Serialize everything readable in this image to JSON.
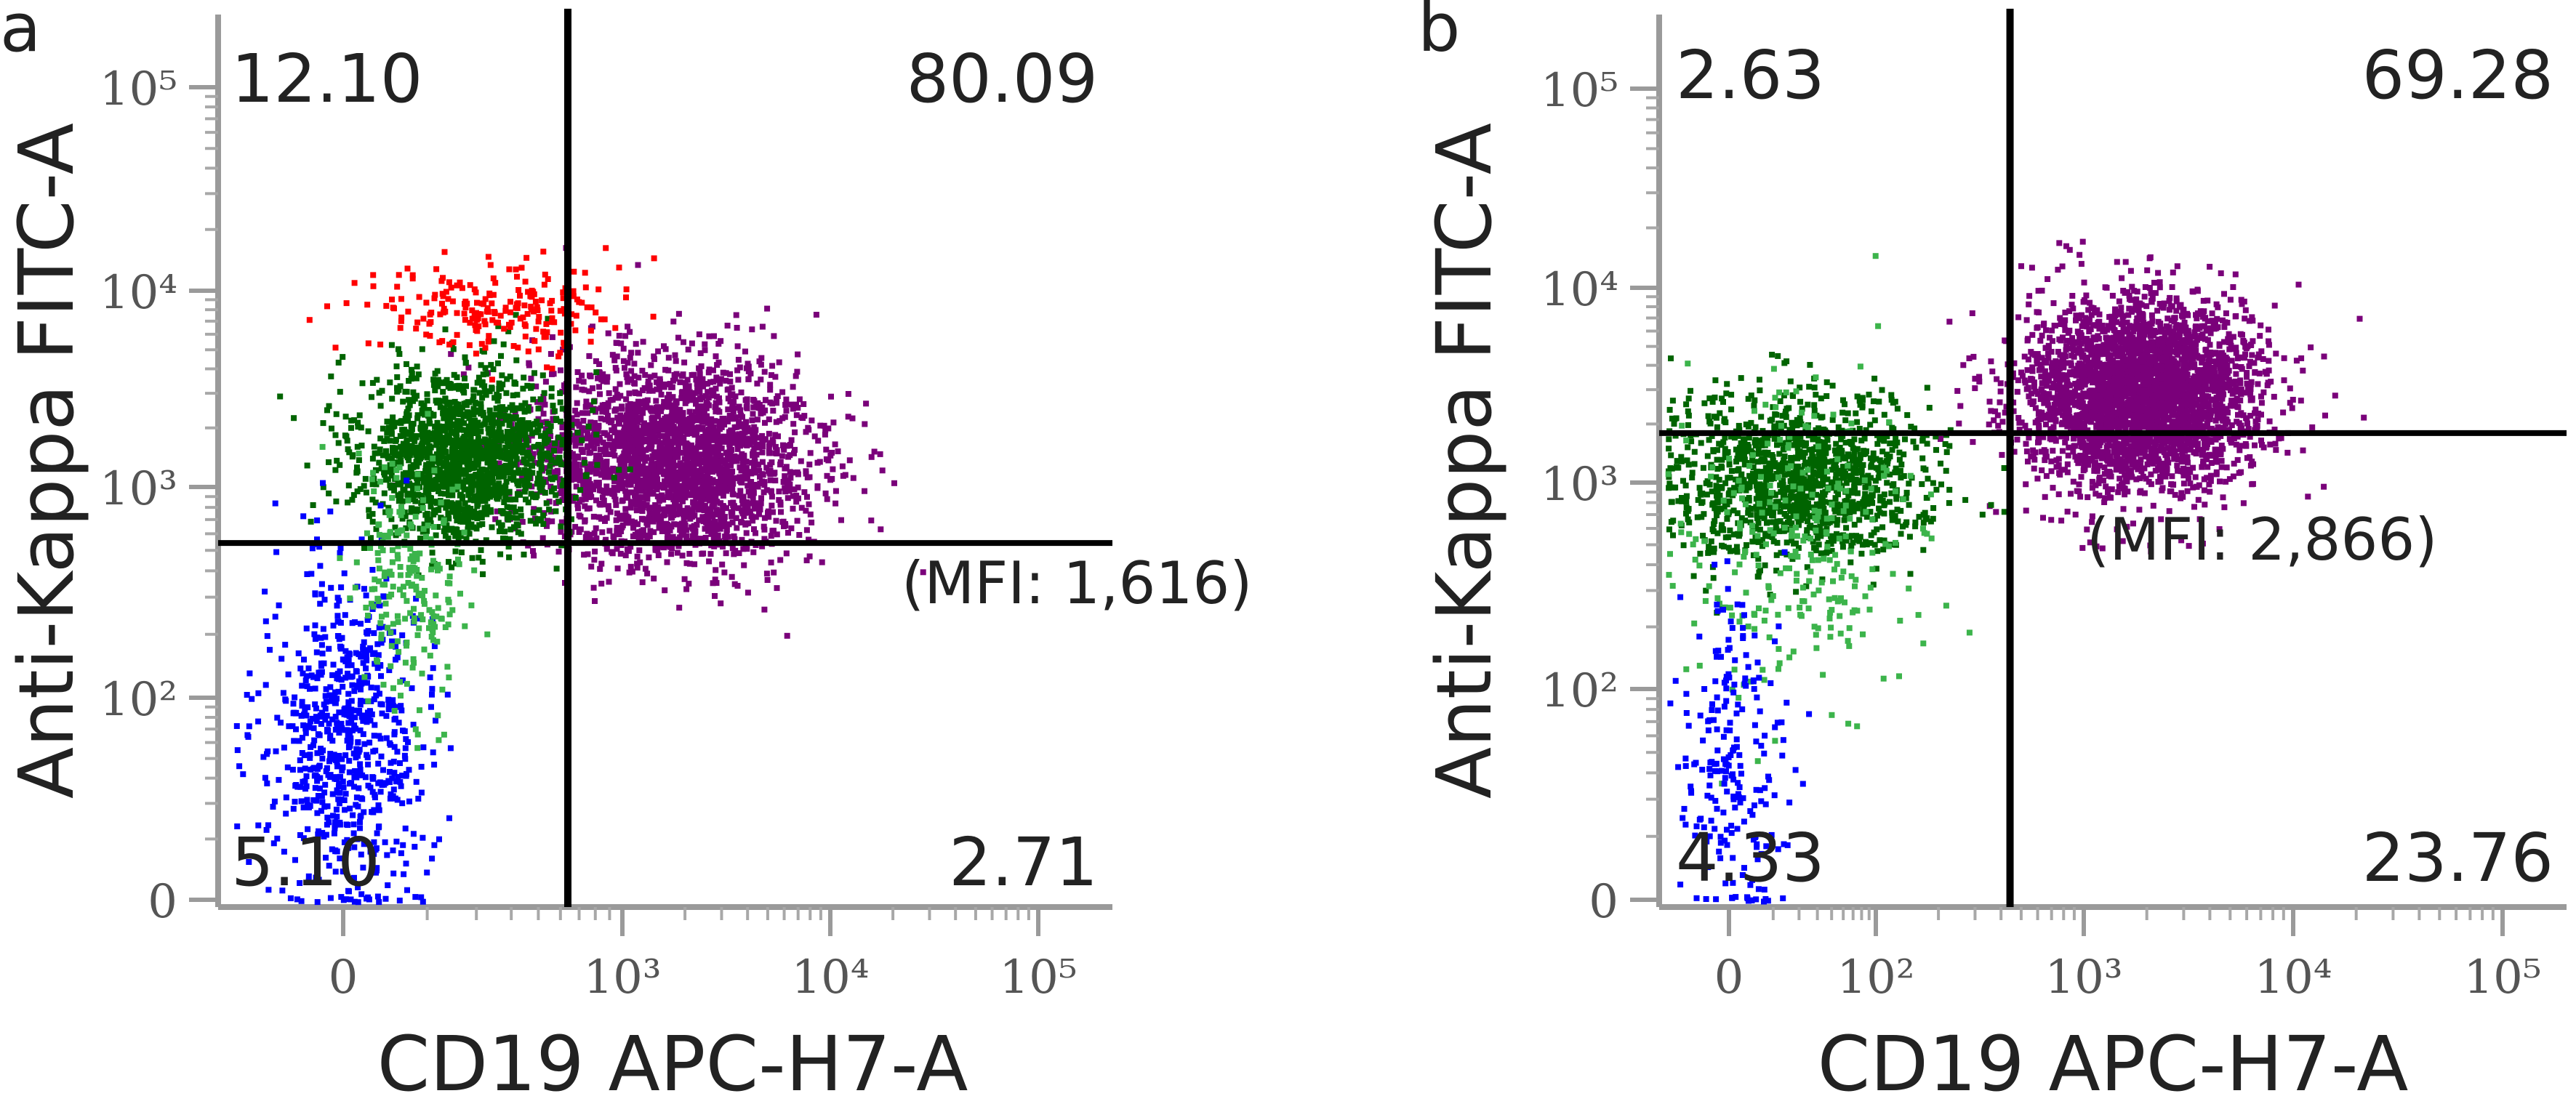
{
  "chart_data": [
    {
      "panel_label": "a",
      "type": "scatter",
      "xlabel": "CD19 APC-H7-A",
      "ylabel": "Anti-Kappa FITC-A",
      "x_ticks": [
        "0",
        "10³",
        "10⁴",
        "10⁵"
      ],
      "y_ticks": [
        "0",
        "10²",
        "10³",
        "10⁴",
        "10⁵"
      ],
      "x_scale": "biexponential",
      "y_scale": "biexponential",
      "xlim": [
        -300,
        250000
      ],
      "ylim": [
        0,
        250000
      ],
      "gate": {
        "x": 400,
        "y": 550
      },
      "quadrants": {
        "upper_left": "12.10",
        "upper_right": "80.09",
        "lower_left": "5.10",
        "lower_right": "2.71"
      },
      "mfi_label": "(MFI: 1,616)",
      "populations": [
        {
          "color": "#7a007a",
          "x_center": 1700,
          "y_center": 1400,
          "count": 2600
        },
        {
          "color": "#006400",
          "x_center": 60,
          "y_center": 1500,
          "count": 1600
        },
        {
          "color": "#ff0000",
          "x_center": 120,
          "y_center": 8000,
          "count": 220
        },
        {
          "color": "#0000ff",
          "x_center": 0,
          "y_center": 60,
          "count": 700
        },
        {
          "color": "#3cb44b",
          "x_center": 20,
          "y_center": 400,
          "count": 220
        }
      ]
    },
    {
      "panel_label": "b",
      "type": "scatter",
      "xlabel": "CD19 APC-H7-A",
      "ylabel": "Anti-Kappa FITC-A",
      "x_ticks": [
        "0",
        "10²",
        "10³",
        "10⁴",
        "10⁵"
      ],
      "y_ticks": [
        "0",
        "10²",
        "10³",
        "10⁴",
        "10⁵"
      ],
      "x_scale": "biexponential",
      "y_scale": "biexponential",
      "xlim": [
        -60,
        250000
      ],
      "ylim": [
        0,
        250000
      ],
      "gate": {
        "x": 450,
        "y": 1800
      },
      "quadrants": {
        "upper_left": "2.63",
        "upper_right": "69.28",
        "lower_left": "4.33",
        "lower_right": "23.76"
      },
      "mfi_label": "(MFI: 2,866)",
      "populations": [
        {
          "color": "#7a007a",
          "x_center": 1800,
          "y_center": 2900,
          "count": 3200
        },
        {
          "color": "#006400",
          "x_center": 20,
          "y_center": 1100,
          "count": 1300
        },
        {
          "color": "#3cb44b",
          "x_center": 20,
          "y_center": 500,
          "count": 260
        },
        {
          "color": "#0000ff",
          "x_center": 0,
          "y_center": 40,
          "count": 220
        }
      ]
    }
  ]
}
